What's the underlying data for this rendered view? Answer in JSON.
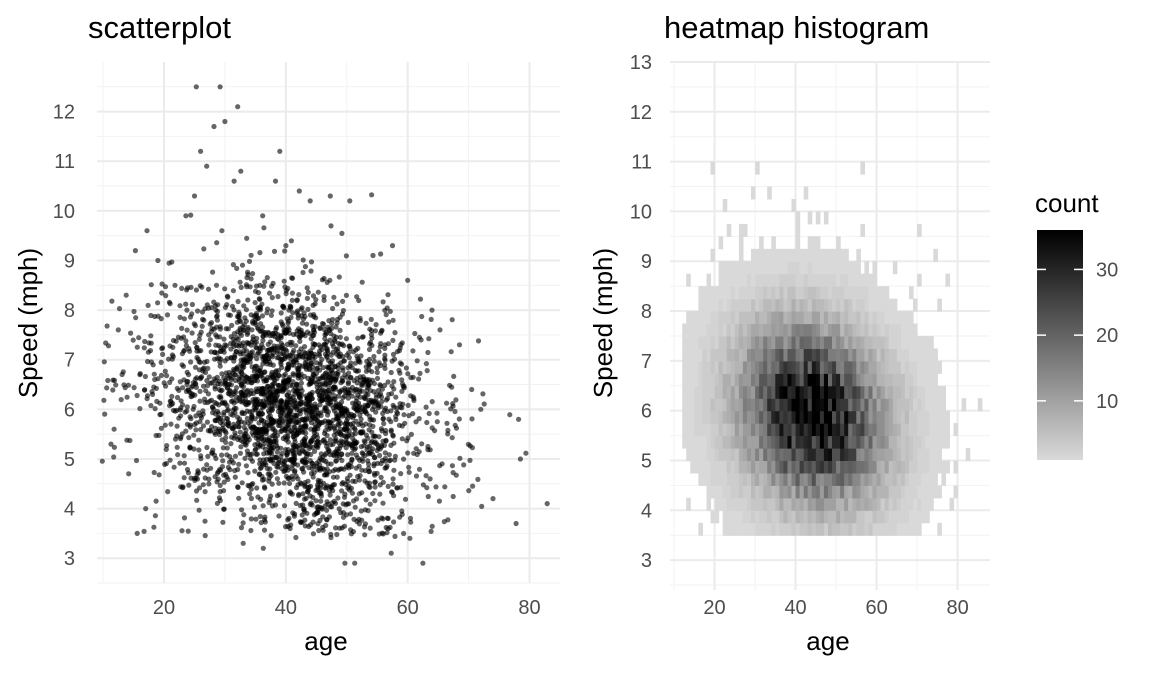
{
  "chart_data": [
    {
      "type": "scatter",
      "title": "scatterplot",
      "xlabel": "age",
      "ylabel": "Speed (mph)",
      "xlim": [
        9,
        85
      ],
      "ylim": [
        2.5,
        13
      ],
      "x_ticks": [
        "20",
        "40",
        "60",
        "80"
      ],
      "y_ticks": [
        "3",
        "4",
        "5",
        "6",
        "7",
        "8",
        "9",
        "10",
        "11",
        "12"
      ],
      "grid": true,
      "point_color": "#000000",
      "point_alpha": 0.6,
      "points": [
        [
          25.3,
          12.5
        ],
        [
          29.2,
          12.5
        ],
        [
          32.1,
          12.1
        ],
        [
          30.0,
          11.8
        ],
        [
          28.2,
          11.7
        ],
        [
          26.0,
          11.2
        ],
        [
          39.0,
          11.2
        ],
        [
          27.0,
          10.9
        ],
        [
          32.6,
          10.8
        ],
        [
          31.5,
          10.6
        ],
        [
          38.3,
          10.6
        ],
        [
          42.2,
          10.4
        ],
        [
          25.0,
          10.3
        ],
        [
          47.3,
          10.3
        ],
        [
          50.5,
          10.2
        ],
        [
          44.0,
          10.2
        ],
        [
          36.2,
          9.9
        ],
        [
          23.6,
          9.9
        ],
        [
          29.5,
          9.6
        ],
        [
          17.2,
          9.6
        ],
        [
          57.5,
          9.3
        ],
        [
          40.0,
          9.3
        ],
        [
          15.3,
          9.2
        ],
        [
          54.3,
          9.1
        ],
        [
          19.0,
          9.0
        ],
        [
          60.0,
          8.6
        ],
        [
          21.8,
          8.5
        ],
        [
          13.8,
          8.3
        ],
        [
          62.2,
          7.4
        ],
        [
          65.3,
          7.6
        ],
        [
          68.5,
          7.3
        ],
        [
          70.5,
          6.4
        ],
        [
          72.0,
          6.0
        ],
        [
          78.2,
          5.8
        ],
        [
          78.5,
          5.0
        ],
        [
          82.9,
          4.1
        ],
        [
          77.8,
          3.7
        ],
        [
          74.0,
          4.2
        ],
        [
          11.8,
          5.6
        ],
        [
          11.3,
          5.3
        ],
        [
          14.2,
          4.7
        ],
        [
          12.5,
          7.6
        ],
        [
          15.6,
          3.5
        ],
        [
          17.0,
          4.0
        ],
        [
          49.7,
          2.9
        ],
        [
          51.3,
          2.9
        ],
        [
          62.5,
          2.9
        ],
        [
          57.3,
          3.1
        ],
        [
          36.3,
          3.2
        ],
        [
          33.0,
          3.3
        ]
      ],
      "note_points": "Representative subset of ~3000 overlapping points; dense cloud centered near age 40, speed 6 mph"
    },
    {
      "type": "heatmap",
      "title": "heatmap histogram",
      "xlabel": "age",
      "ylabel": "Speed (mph)",
      "xlim": [
        9,
        88
      ],
      "ylim": [
        2.4,
        13
      ],
      "x_ticks": [
        "20",
        "40",
        "60",
        "80"
      ],
      "y_ticks": [
        "3",
        "4",
        "5",
        "6",
        "7",
        "8",
        "9",
        "10",
        "11",
        "12",
        "13"
      ],
      "grid": true,
      "bin_age_width": 1.0,
      "bin_speed_width": 0.25,
      "fill_low": "#d9d9d9",
      "fill_high": "#000000",
      "legend": {
        "title": "count",
        "ticks": [
          "10",
          "20",
          "30"
        ],
        "tick_values": [
          10,
          20,
          30
        ],
        "range": [
          1,
          36
        ],
        "position": "right"
      }
    }
  ]
}
